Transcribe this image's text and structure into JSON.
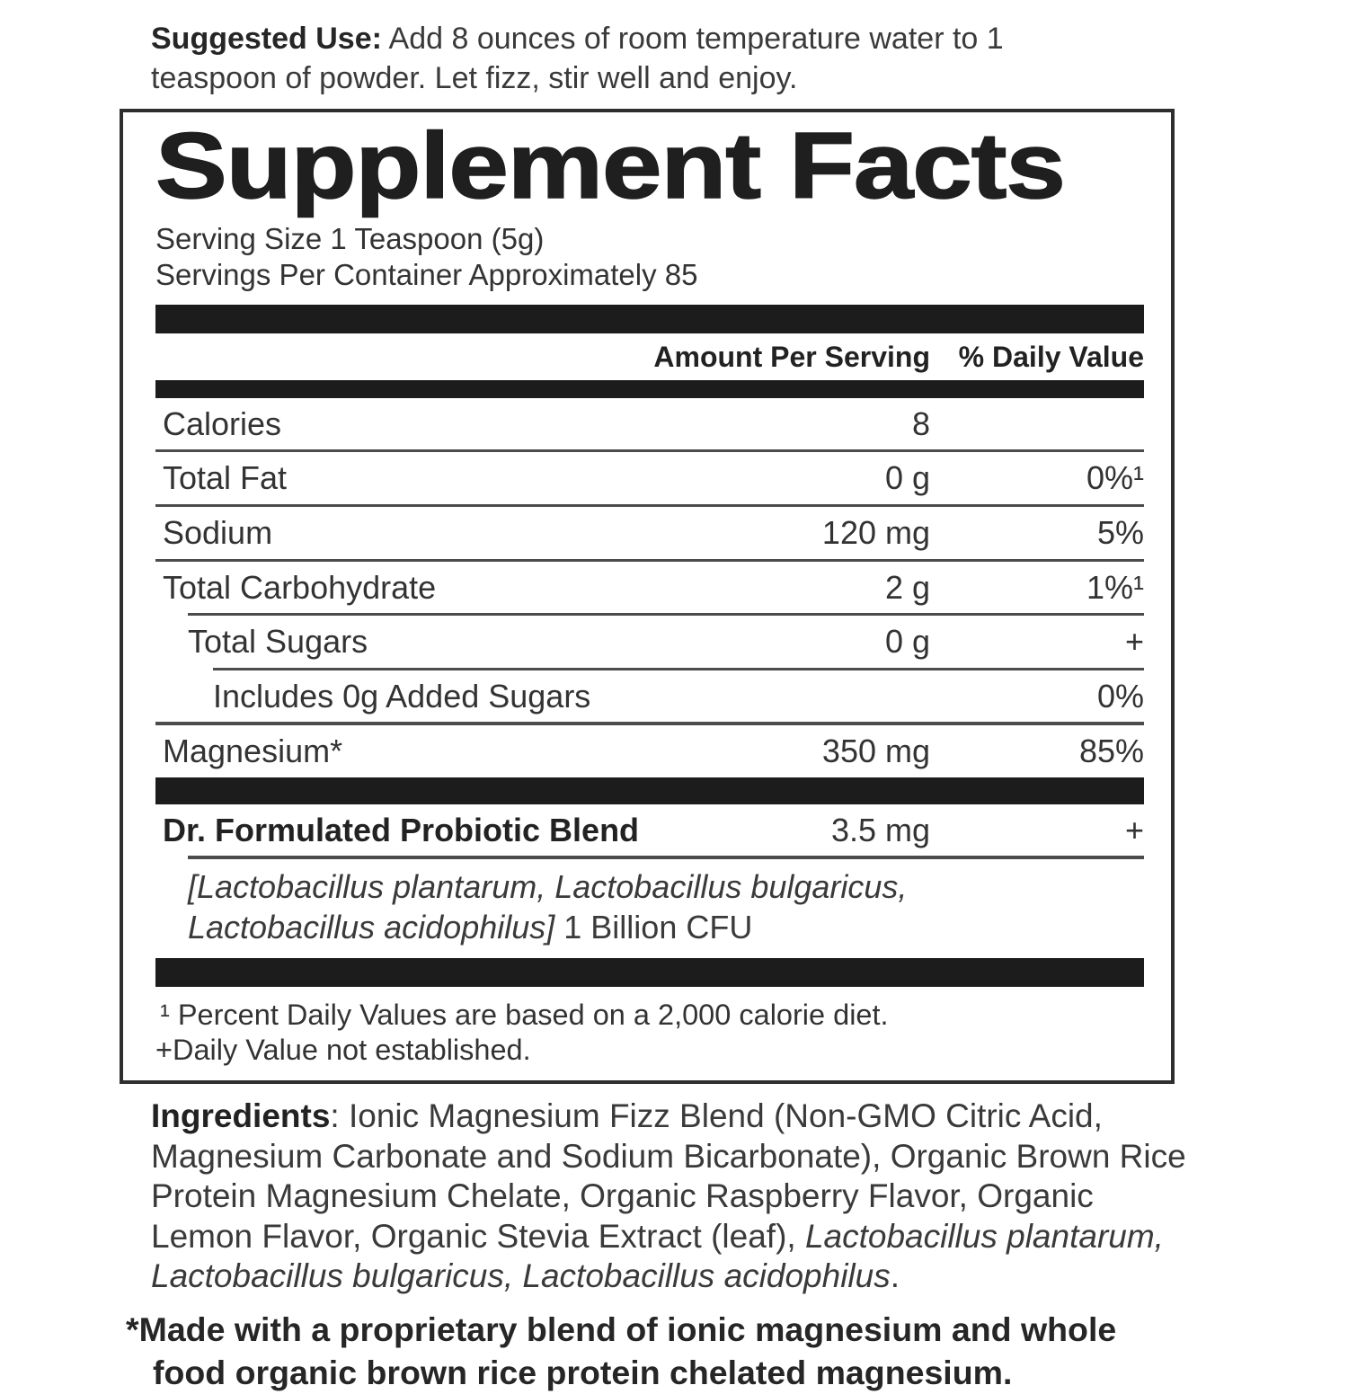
{
  "suggested_use": {
    "label": "Suggested Use:",
    "text": " Add 8 ounces of room temperature water to 1 teaspoon of powder. Let fizz, stir well and enjoy."
  },
  "panel": {
    "title": "Supplement Facts",
    "serving_size": "Serving Size 1 Teaspoon (5g)",
    "servings_per_container": "Servings Per Container Approximately 85",
    "header": {
      "amount": "Amount Per Serving",
      "daily_value": "% Daily Value"
    },
    "rows": [
      {
        "name": "Calories",
        "amount": "8",
        "dv": ""
      },
      {
        "name": "Total Fat",
        "amount": "0 g",
        "dv": "0%¹"
      },
      {
        "name": "Sodium",
        "amount": "120 mg",
        "dv": "5%"
      },
      {
        "name": "Total Carbohydrate",
        "amount": "2 g",
        "dv": "1%¹"
      },
      {
        "name": "Total Sugars",
        "amount": "0 g",
        "dv": "+"
      },
      {
        "name": "Includes 0g Added Sugars",
        "amount": "",
        "dv": "0%"
      },
      {
        "name": "Magnesium*",
        "amount": "350 mg",
        "dv": "85%"
      }
    ],
    "probiotic": {
      "name": "Dr. Formulated Probiotic Blend",
      "amount": "3.5 mg",
      "dv": "+",
      "species": "[Lactobacillus plantarum, Lactobacillus bulgaricus, Lactobacillus acidophilus]",
      "cfu": " 1 Billion CFU"
    },
    "footnotes": {
      "percent": "¹ Percent Daily Values are based on a 2,000 calorie diet.",
      "plus": "+Daily Value not established."
    }
  },
  "ingredients": {
    "label": "Ingredients",
    "text_before_italic": ": Ionic Magnesium Fizz Blend (Non-GMO Citric Acid, Magnesium Carbonate and Sodium Bicarbonate), Organic Brown Rice Protein Magnesium Chelate, Organic Raspberry Flavor, Organic Lemon Flavor, Organic Stevia Extract (leaf), ",
    "italic": "Lactobacillus plantarum, Lactobacillus bulgaricus, Lactobacillus acidophilus",
    "text_after_italic": "."
  },
  "made_note": "*Made with a proprietary blend of ionic magnesium and whole food organic brown rice protein chelated magnesium.",
  "colors": {
    "text": "#3a3a3a",
    "heavy_text": "#1f1f1f",
    "bar": "#1c1c1c",
    "rule": "#4c4c4c",
    "background": "#ffffff"
  }
}
